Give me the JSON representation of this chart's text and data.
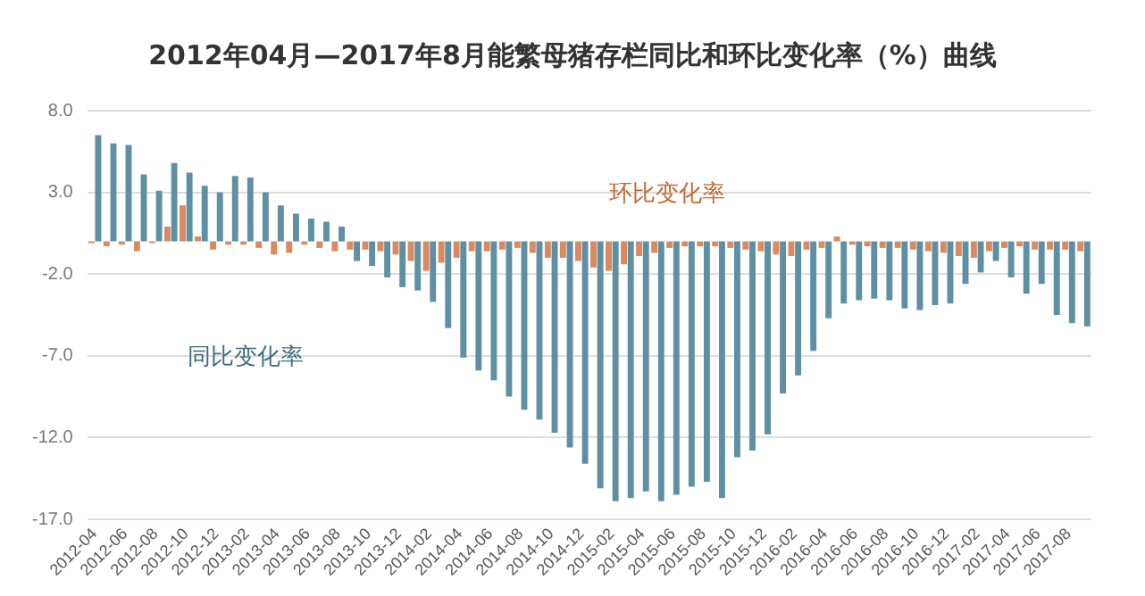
{
  "chart_data": {
    "type": "bar",
    "title": "2012年04月—2017年8月能繁母猪存栏同比和环比变化率（%）曲线",
    "categories": [
      "2012-04",
      null,
      "2012-06",
      null,
      "2012-08",
      null,
      "2012-10",
      null,
      "2012-12",
      null,
      "2013-02",
      null,
      "2013-04",
      null,
      "2013-06",
      null,
      "2013-08",
      null,
      "2013-10",
      null,
      "2013-12",
      null,
      "2014-02",
      null,
      "2014-04",
      null,
      "2014-06",
      null,
      "2014-08",
      null,
      "2014-10",
      null,
      "2014-12",
      null,
      "2015-02",
      null,
      "2015-04",
      null,
      "2015-06",
      null,
      "2015-08",
      null,
      "2015-10",
      null,
      "2015-12",
      null,
      "2016-02",
      null,
      "2016-04",
      null,
      "2016-06",
      null,
      "2016-08",
      null,
      "2016-10",
      null,
      "2016-12",
      null,
      "2017-02",
      null,
      "2017-04",
      null,
      "2017-06",
      null,
      "2017-08",
      null
    ],
    "series": [
      {
        "name": "同比变化率",
        "color": "#5e8fa3",
        "values": [
          6.5,
          6.0,
          5.9,
          4.1,
          3.1,
          4.8,
          4.2,
          3.4,
          3.0,
          4.0,
          3.9,
          3.0,
          2.2,
          1.7,
          1.4,
          1.2,
          0.9,
          -1.2,
          -1.5,
          -2.2,
          -2.8,
          -3.0,
          -3.7,
          -5.3,
          -7.1,
          -7.9,
          -8.5,
          -9.5,
          -10.3,
          -10.9,
          -11.7,
          -12.6,
          -13.6,
          -15.1,
          -15.9,
          -15.7,
          -15.3,
          -15.9,
          -15.5,
          -15.0,
          -14.7,
          -15.7,
          -13.2,
          -12.8,
          -11.8,
          -9.3,
          -8.2,
          -6.7,
          -4.7,
          -3.8,
          -3.6,
          -3.5,
          -3.6,
          -4.1,
          -4.2,
          -3.9,
          -3.8,
          -2.6,
          -1.9,
          -1.2,
          -2.2,
          -3.2,
          -2.6,
          -4.5,
          -5.0,
          -5.2
        ]
      },
      {
        "name": "环比变化率",
        "color": "#d98a5f",
        "values": [
          -0.1,
          -0.3,
          -0.2,
          -0.6,
          -0.1,
          0.9,
          2.2,
          0.3,
          -0.5,
          -0.2,
          -0.2,
          -0.4,
          -0.8,
          -0.7,
          -0.2,
          -0.4,
          -0.6,
          -0.5,
          -0.5,
          -0.6,
          -0.8,
          -1.2,
          -1.8,
          -1.3,
          -1.0,
          -0.6,
          -0.6,
          -0.5,
          -0.4,
          -0.7,
          -1.0,
          -1.0,
          -1.2,
          -1.6,
          -1.8,
          -1.4,
          -0.9,
          -0.7,
          -0.4,
          -0.3,
          -0.3,
          -0.3,
          -0.4,
          -0.5,
          -0.6,
          -0.8,
          -0.9,
          -0.5,
          -0.4,
          0.3,
          -0.2,
          -0.3,
          -0.4,
          -0.4,
          -0.5,
          -0.6,
          -0.7,
          -0.9,
          -1.0,
          -0.6,
          -0.4,
          -0.3,
          -0.5,
          -0.5,
          -0.5,
          -0.6
        ]
      }
    ],
    "ylim": [
      -17,
      8
    ],
    "yticks": [
      {
        "value": -17,
        "label": "-17.0"
      },
      {
        "value": -12,
        "label": "-12.0"
      },
      {
        "value": -7,
        "label": "-7.0"
      },
      {
        "value": -2,
        "label": "-2.0"
      },
      {
        "value": 3,
        "label": "3.0"
      },
      {
        "value": 8,
        "label": "8.0"
      }
    ],
    "grid": "y",
    "legend": false
  }
}
